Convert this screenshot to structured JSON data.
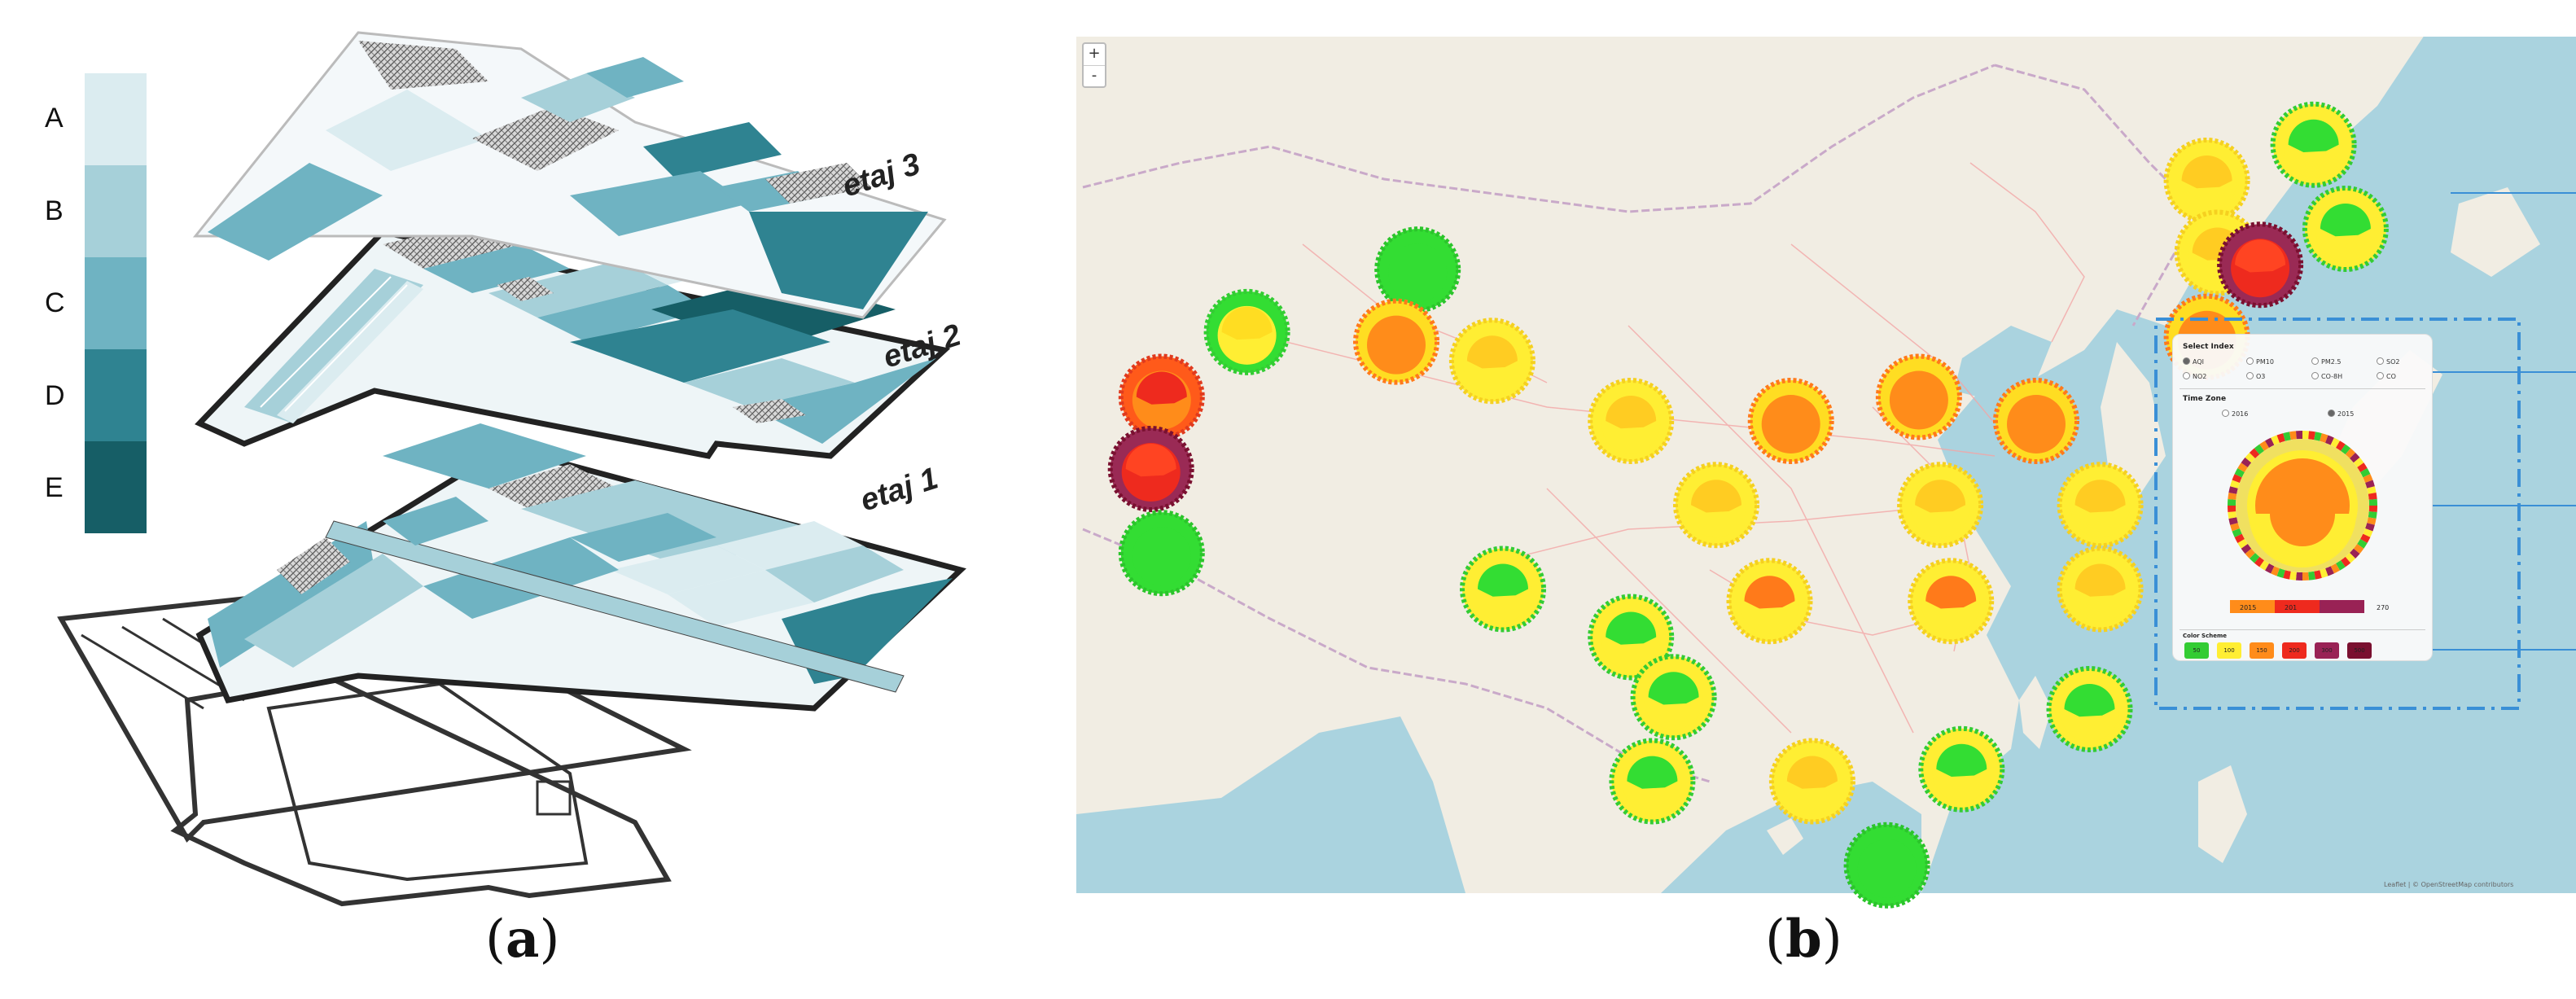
{
  "panel_a": {
    "legend": [
      "A",
      "B",
      "C",
      "D",
      "E"
    ],
    "legend_colors": [
      "#dbecf0",
      "#a6d0d9",
      "#6fb3c2",
      "#2f8391",
      "#165e66"
    ],
    "floor_labels": [
      "etaj 3",
      "etaj 2",
      "etaj 1"
    ],
    "caption_letter": "a"
  },
  "panel_b": {
    "caption_letter": "b",
    "zoom": {
      "in": "+",
      "out": "-"
    },
    "selector": {
      "title": "Select Index",
      "indices": [
        "AQI",
        "PM10",
        "PM2.5",
        "SO2",
        "NO2",
        "O3",
        "CO-8H",
        "CO"
      ],
      "selected_index": "AQI",
      "time_title": "Time Zone",
      "years": [
        "2016",
        "2015"
      ],
      "selected_year": "2015",
      "range_labels": [
        "2015",
        "201",
        "270"
      ],
      "color_title": "Color Scheme",
      "color_scheme": [
        {
          "label": "50",
          "color": "#33cc33"
        },
        {
          "label": "100",
          "color": "#ffee33"
        },
        {
          "label": "150",
          "color": "#ff8c1a"
        },
        {
          "label": "200",
          "color": "#ee2a1e"
        },
        {
          "label": "300",
          "color": "#992255"
        },
        {
          "label": "500",
          "color": "#7a1030"
        }
      ]
    },
    "attribution": "Leaflet | © OpenStreetMap contributors",
    "city_markers": [
      {
        "lon": 88.0,
        "lat": 43.8,
        "type": "green"
      },
      {
        "lon": 80.0,
        "lat": 41.2,
        "type": "mixed-yellow"
      },
      {
        "lon": 87.0,
        "lat": 40.8,
        "type": "orange"
      },
      {
        "lon": 91.5,
        "lat": 40.0,
        "type": "yellow"
      },
      {
        "lon": 76.0,
        "lat": 38.5,
        "type": "orange-red"
      },
      {
        "lon": 75.5,
        "lat": 35.5,
        "type": "red"
      },
      {
        "lon": 76.0,
        "lat": 32.0,
        "type": "green"
      },
      {
        "lon": 98.0,
        "lat": 37.5,
        "type": "yellow"
      },
      {
        "lon": 105.5,
        "lat": 37.5,
        "type": "orange"
      },
      {
        "lon": 111.5,
        "lat": 38.5,
        "type": "orange"
      },
      {
        "lon": 117.0,
        "lat": 37.5,
        "type": "orange"
      },
      {
        "lon": 102.0,
        "lat": 34.0,
        "type": "yellow"
      },
      {
        "lon": 112.5,
        "lat": 34.0,
        "type": "yellow"
      },
      {
        "lon": 120.0,
        "lat": 34.0,
        "type": "yellow"
      },
      {
        "lon": 98.0,
        "lat": 28.5,
        "type": "mixed-green"
      },
      {
        "lon": 92.0,
        "lat": 30.5,
        "type": "mixed-green"
      },
      {
        "lon": 104.5,
        "lat": 30.0,
        "type": "orange-yellow"
      },
      {
        "lon": 113.0,
        "lat": 30.0,
        "type": "orange-yellow"
      },
      {
        "lon": 120.0,
        "lat": 30.5,
        "type": "yellow"
      },
      {
        "lon": 100.0,
        "lat": 26.0,
        "type": "mixed-green"
      },
      {
        "lon": 99.0,
        "lat": 22.5,
        "type": "mixed-green"
      },
      {
        "lon": 106.5,
        "lat": 22.5,
        "type": "yellow"
      },
      {
        "lon": 113.5,
        "lat": 23.0,
        "type": "mixed-green"
      },
      {
        "lon": 119.5,
        "lat": 25.5,
        "type": "mixed-green"
      },
      {
        "lon": 110.0,
        "lat": 19.0,
        "type": "green"
      },
      {
        "lon": 125.0,
        "lat": 47.5,
        "type": "yellow"
      },
      {
        "lon": 130.0,
        "lat": 49.0,
        "type": "mixed-green"
      },
      {
        "lon": 125.5,
        "lat": 44.5,
        "type": "yellow"
      },
      {
        "lon": 127.5,
        "lat": 44.0,
        "type": "red"
      },
      {
        "lon": 131.5,
        "lat": 45.5,
        "type": "mixed-green"
      },
      {
        "lon": 125.0,
        "lat": 41.0,
        "type": "orange"
      }
    ]
  }
}
